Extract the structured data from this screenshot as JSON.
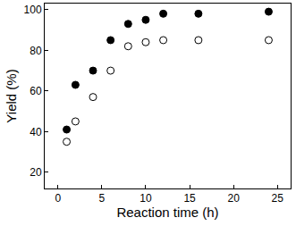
{
  "chart_data": {
    "type": "scatter",
    "x_label": "Reaction time (h)",
    "y_label": "Yield (%)",
    "x": [
      1,
      2,
      4,
      6,
      8,
      10,
      12,
      16,
      24
    ],
    "series": [
      {
        "color": "#000000",
        "marker": "filled",
        "values": [
          41,
          63,
          70,
          85,
          93,
          95,
          98,
          98,
          99
        ]
      },
      {
        "color": "#000000",
        "marker": "open",
        "values": [
          35,
          45,
          57,
          70,
          82,
          84,
          85,
          85,
          85
        ]
      }
    ],
    "xlim": [
      -1.5,
      26.5
    ],
    "xticks": [
      0,
      5,
      10,
      15,
      20,
      25
    ],
    "ylim": [
      12,
      103
    ],
    "yticks": [
      20,
      40,
      60,
      80,
      100
    ],
    "grid": false
  }
}
